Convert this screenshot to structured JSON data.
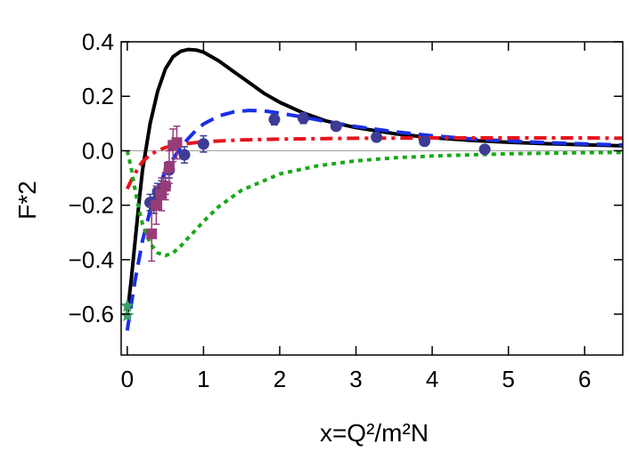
{
  "chart_data": {
    "type": "line",
    "xlabel": "x=Q²/m²N",
    "ylabel": "F*2",
    "xlim": [
      -0.08,
      6.5
    ],
    "ylim": [
      -0.75,
      0.4
    ],
    "x_ticks": [
      0,
      1,
      2,
      3,
      4,
      5,
      6
    ],
    "x_tick_labels": [
      "0",
      "1",
      "2",
      "3",
      "4",
      "5",
      "6"
    ],
    "y_ticks": [
      -0.6,
      -0.4,
      -0.2,
      0.0,
      0.2,
      0.4
    ],
    "y_tick_labels": [
      "−0.6",
      "−0.4",
      "−0.2",
      "0.0",
      "0.2",
      "0.4"
    ],
    "grid": false,
    "legend": "none",
    "zero_line": true,
    "series": [
      {
        "style": "solid",
        "color": "#000000",
        "x": [
          0.0,
          0.05,
          0.1,
          0.15,
          0.2,
          0.3,
          0.4,
          0.5,
          0.6,
          0.7,
          0.8,
          0.9,
          1.0,
          1.2,
          1.4,
          1.6,
          1.8,
          2.0,
          2.3,
          2.6,
          3.0,
          3.5,
          4.0,
          4.5,
          5.0,
          5.5,
          6.0,
          6.5
        ],
        "y": [
          -0.6,
          -0.48,
          -0.34,
          -0.2,
          -0.07,
          0.1,
          0.22,
          0.3,
          0.345,
          0.365,
          0.372,
          0.37,
          0.362,
          0.33,
          0.29,
          0.25,
          0.21,
          0.178,
          0.14,
          0.11,
          0.085,
          0.063,
          0.048,
          0.038,
          0.031,
          0.026,
          0.022,
          0.018
        ]
      },
      {
        "style": "dashed",
        "color": "#1a2ee8",
        "x": [
          0.0,
          0.1,
          0.2,
          0.3,
          0.4,
          0.5,
          0.6,
          0.7,
          0.8,
          0.9,
          1.0,
          1.2,
          1.4,
          1.6,
          1.8,
          2.0,
          2.3,
          2.6,
          3.0,
          3.5,
          4.0,
          4.5,
          5.0,
          5.5,
          6.0,
          6.5
        ],
        "y": [
          -0.66,
          -0.48,
          -0.33,
          -0.22,
          -0.14,
          -0.075,
          -0.03,
          0.012,
          0.045,
          0.075,
          0.098,
          0.128,
          0.143,
          0.148,
          0.146,
          0.138,
          0.124,
          0.108,
          0.089,
          0.07,
          0.055,
          0.044,
          0.036,
          0.03,
          0.025,
          0.021
        ]
      },
      {
        "style": "dashdot",
        "color": "#e8141e",
        "x": [
          0.0,
          0.05,
          0.1,
          0.15,
          0.2,
          0.3,
          0.4,
          0.5,
          0.7,
          1.0,
          1.5,
          2.0,
          3.0,
          4.0,
          5.0,
          6.0,
          6.5
        ],
        "y": [
          -0.14,
          -0.11,
          -0.085,
          -0.06,
          -0.04,
          -0.015,
          0.0,
          0.012,
          0.024,
          0.033,
          0.04,
          0.043,
          0.046,
          0.047,
          0.047,
          0.047,
          0.046
        ]
      },
      {
        "style": "dotted",
        "color": "#1aa81a",
        "x": [
          0.0,
          0.05,
          0.1,
          0.15,
          0.2,
          0.3,
          0.4,
          0.5,
          0.6,
          0.7,
          0.8,
          1.0,
          1.2,
          1.5,
          2.0,
          2.5,
          3.0,
          3.5,
          4.0,
          5.0,
          6.0,
          6.5
        ],
        "y": [
          0.0,
          -0.06,
          -0.14,
          -0.21,
          -0.27,
          -0.34,
          -0.375,
          -0.385,
          -0.375,
          -0.35,
          -0.32,
          -0.26,
          -0.205,
          -0.145,
          -0.085,
          -0.055,
          -0.037,
          -0.026,
          -0.019,
          -0.011,
          -0.007,
          -0.006
        ]
      }
    ],
    "markers": [
      {
        "shape": "circle",
        "color": "#3c3c96",
        "x": [
          0.3,
          0.35,
          0.4,
          0.45,
          0.5,
          0.55,
          0.75,
          1.0,
          1.93,
          2.31,
          2.74,
          3.27,
          3.9,
          4.69
        ],
        "y": [
          -0.19,
          -0.2,
          -0.15,
          -0.14,
          -0.13,
          -0.07,
          -0.015,
          0.025,
          0.115,
          0.12,
          0.09,
          0.05,
          0.035,
          0.005
        ],
        "err": [
          0.03,
          0.03,
          0.03,
          0.03,
          0.03,
          0.03,
          0.03,
          0.03,
          0.02,
          0.02,
          0.015,
          0.015,
          0.015,
          0.015
        ]
      },
      {
        "shape": "square",
        "color": "#963c78",
        "x": [
          0.32,
          0.38,
          0.45,
          0.5,
          0.55,
          0.6,
          0.65
        ],
        "y": [
          -0.305,
          -0.2,
          -0.16,
          -0.13,
          -0.06,
          0.02,
          0.03
        ],
        "err": [
          0.1,
          0.07,
          0.06,
          0.05,
          0.06,
          0.06,
          0.06
        ]
      },
      {
        "shape": "star",
        "color": "#3ca064",
        "x": [
          0.0,
          0.0
        ],
        "y": [
          -0.57,
          -0.605
        ],
        "err": [
          0,
          0
        ]
      }
    ]
  }
}
